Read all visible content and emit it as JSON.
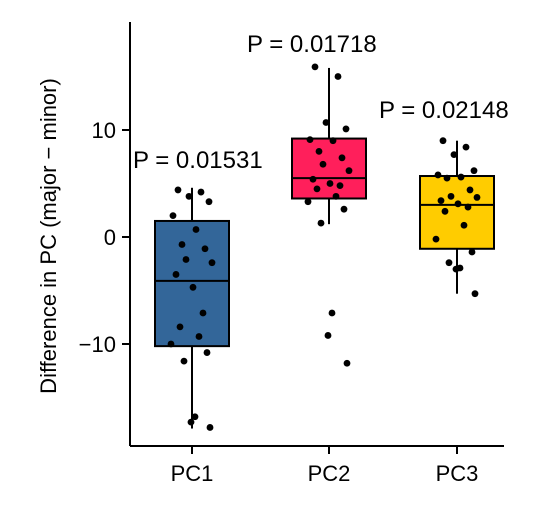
{
  "chart_data": {
    "type": "box",
    "xlabel": "",
    "ylabel": "Difference in PC (major − minor)",
    "ylim": [
      -19.5,
      20
    ],
    "yticks": [
      -10,
      0,
      10
    ],
    "ytick_labels": [
      "−10",
      "0",
      "10"
    ],
    "grid": false,
    "legend": "none",
    "categories": [
      "PC1",
      "PC2",
      "PC3"
    ],
    "annotations": [
      "P = 0.01531",
      "P = 0.01718",
      "P = 0.02148"
    ],
    "boxes": [
      {
        "name": "PC1",
        "color": "#336699",
        "q1": -10.2,
        "median": -4.1,
        "q3": 1.5,
        "whisker_low": -17.9,
        "whisker_high": 4.6
      },
      {
        "name": "PC2",
        "color": "#FF1F5B",
        "q1": 3.6,
        "median": 5.5,
        "q3": 9.2,
        "whisker_low": 1.2,
        "whisker_high": 15.8
      },
      {
        "name": "PC3",
        "color": "#FFCC00",
        "q1": -1.1,
        "median": 3.0,
        "q3": 5.7,
        "whisker_low": -5.3,
        "whisker_high": 9.0
      }
    ],
    "points": [
      {
        "category": "PC1",
        "values": [
          4.4,
          4.2,
          3.8,
          3.3,
          2.0,
          0.7,
          -0.7,
          -1.1,
          -2.1,
          -2.4,
          -3.5,
          -4.7,
          -7.1,
          -8.4,
          -9.3,
          -10.0,
          -10.8,
          -11.6,
          -16.8,
          -17.3,
          -17.8
        ]
      },
      {
        "category": "PC2",
        "values": [
          15.9,
          15.0,
          10.7,
          10.1,
          9.1,
          9.0,
          8.0,
          7.4,
          6.8,
          6.2,
          5.4,
          5.0,
          4.8,
          4.5,
          3.8,
          3.3,
          2.6,
          1.3,
          -7.1,
          -9.2,
          -11.8
        ]
      },
      {
        "category": "PC3",
        "values": [
          9.0,
          8.4,
          7.7,
          6.2,
          5.8,
          5.6,
          5.5,
          4.4,
          3.8,
          3.7,
          3.4,
          3.1,
          2.8,
          2.4,
          1.1,
          -0.2,
          -1.4,
          -2.4,
          -2.9,
          -3.0,
          -5.3
        ]
      }
    ]
  }
}
